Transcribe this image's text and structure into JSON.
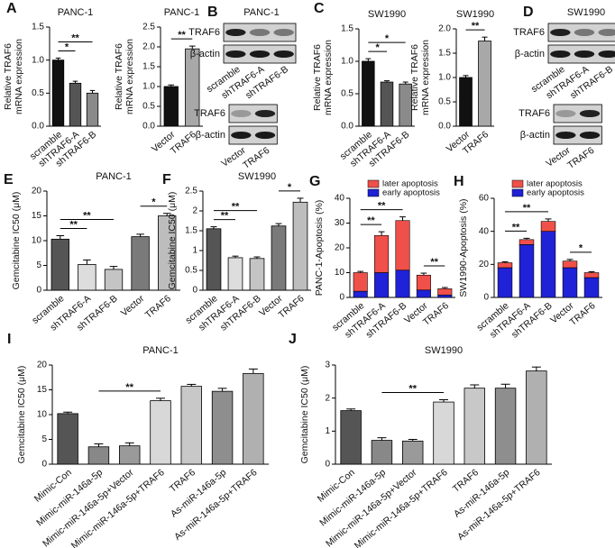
{
  "chart_data": [
    {
      "type": "bar",
      "letter": "A",
      "title": "PANC-1",
      "ylabel": [
        "Relative TRAF6",
        "mRNA expression"
      ],
      "categories": [
        "scramble",
        "shTRAF6-A",
        "shTRAF6-B"
      ],
      "values": [
        1.0,
        0.65,
        0.5
      ],
      "errors": [
        0.03,
        0.03,
        0.04
      ],
      "colors": [
        "#111111",
        "#555555",
        "#8a8a8a"
      ],
      "ylim": [
        0,
        1.5
      ],
      "yticks": [
        {
          "value": 0,
          "label": "0.0"
        },
        0.5,
        {
          "value": 1,
          "label": "1.0"
        },
        1.5
      ],
      "annotations": [
        {
          "text": "*",
          "between": [
            "scramble",
            "shTRAF6-A"
          ]
        },
        {
          "text": "**",
          "between": [
            "scramble",
            "shTRAF6-B"
          ]
        }
      ]
    },
    {
      "type": "bar",
      "title": "PANC-1",
      "ylabel": [
        "Relative TRAF6",
        "mRNA expression"
      ],
      "categories": [
        "Vector",
        "TRAF6"
      ],
      "values": [
        1.0,
        1.95
      ],
      "errors": [
        0.04,
        0.07
      ],
      "colors": [
        "#111111",
        "#a8a8a8"
      ],
      "ylim": [
        0,
        2.5
      ],
      "yticks": [
        {
          "value": 0,
          "label": "0.0"
        },
        0.5,
        {
          "value": 1,
          "label": "1.0"
        },
        1.5,
        {
          "value": 2,
          "label": "2.0"
        },
        2.5
      ],
      "annotations": [
        {
          "text": "**",
          "between": [
            "Vector",
            "TRAF6"
          ]
        }
      ]
    },
    {
      "type": "bar",
      "letter": "C",
      "title": "SW1990",
      "ylabel": [
        "Relative TRAF6",
        "mRNA expression"
      ],
      "categories": [
        "scramble",
        "shTRAF6-A",
        "shTRAF6-B"
      ],
      "values": [
        1.0,
        0.68,
        0.65
      ],
      "errors": [
        0.04,
        0.02,
        0.03
      ],
      "colors": [
        "#111111",
        "#555555",
        "#8a8a8a"
      ],
      "ylim": [
        0,
        1.5
      ],
      "yticks": [
        {
          "value": 0,
          "label": "0.0"
        },
        0.5,
        {
          "value": 1,
          "label": "1.0"
        },
        1.5
      ],
      "annotations": [
        {
          "text": "*",
          "between": [
            "scramble",
            "shTRAF6-A"
          ]
        },
        {
          "text": "*",
          "between": [
            "scramble",
            "shTRAF6-B"
          ]
        }
      ]
    },
    {
      "type": "bar",
      "title": "SW1990",
      "ylabel": [
        "Relative TRAF6",
        "mRNA expression"
      ],
      "categories": [
        "Vector",
        "TRAF6"
      ],
      "values": [
        1.0,
        1.75
      ],
      "errors": [
        0.04,
        0.08
      ],
      "colors": [
        "#111111",
        "#a8a8a8"
      ],
      "ylim": [
        0,
        2
      ],
      "yticks": [
        {
          "value": 0,
          "label": "0.0"
        },
        0.5,
        {
          "value": 1,
          "label": "1.0"
        },
        1.5,
        {
          "value": 2,
          "label": "2.0"
        }
      ],
      "annotations": [
        {
          "text": "**",
          "between": [
            "Vector",
            "TRAF6"
          ]
        }
      ]
    },
    {
      "type": "bar",
      "letter": "E",
      "title": "PANC-1",
      "ylabel": [
        "Gemcitabine IC50 (μM)"
      ],
      "categories": [
        "scramble",
        "shTRAF6-A",
        "shTRAF6-B",
        "Vector",
        "TRAF6"
      ],
      "values": [
        10.3,
        5.2,
        4.2,
        10.8,
        15.0
      ],
      "errors": [
        0.7,
        0.9,
        0.6,
        0.5,
        0.5
      ],
      "colors": [
        "#555555",
        "#dddddd",
        "#c4c4c4",
        "#7a7a7a",
        "#bdbdbd"
      ],
      "ylim": [
        0,
        20
      ],
      "yticks": [
        0,
        5,
        10,
        15,
        20
      ],
      "annotations": [
        {
          "text": "**",
          "between": [
            "scramble",
            "shTRAF6-A"
          ]
        },
        {
          "text": "**",
          "between": [
            "scramble",
            "shTRAF6-B"
          ]
        },
        {
          "text": "*",
          "between": [
            "Vector",
            "TRAF6"
          ]
        }
      ]
    },
    {
      "type": "bar",
      "letter": "F",
      "title": "SW1990",
      "ylabel": [
        "Gemcitabine IC50 (μM)"
      ],
      "categories": [
        "scramble",
        "shTRAF6-A",
        "shTRAF6-B",
        "Vector",
        "TRAF6"
      ],
      "values": [
        1.55,
        0.82,
        0.8,
        1.62,
        2.22
      ],
      "errors": [
        0.05,
        0.04,
        0.04,
        0.06,
        0.1
      ],
      "colors": [
        "#555555",
        "#dddddd",
        "#c4c4c4",
        "#7a7a7a",
        "#bdbdbd"
      ],
      "ylim": [
        0,
        2.5
      ],
      "yticks": [
        0,
        0.5,
        1,
        1.5,
        2,
        2.5
      ],
      "annotations": [
        {
          "text": "**",
          "between": [
            "scramble",
            "shTRAF6-A"
          ]
        },
        {
          "text": "**",
          "between": [
            "scramble",
            "shTRAF6-B"
          ]
        },
        {
          "text": "*",
          "between": [
            "Vector",
            "TRAF6"
          ]
        }
      ]
    },
    {
      "type": "stacked_bar",
      "letter": "G",
      "ylabel": [
        "PANC-1-Apoptosis (%)"
      ],
      "categories": [
        "scramble",
        "shTRAF6-A",
        "shTRAF6-B",
        "Vector",
        "TRAF6"
      ],
      "series": [
        {
          "name": "early apoptosis",
          "color": "#1f22d6",
          "values": [
            2.5,
            10,
            11,
            3,
            1
          ],
          "errors": [
            0.3,
            0.8,
            0.8,
            0.3,
            0.2
          ]
        },
        {
          "name": "later apoptosis",
          "color": "#f0504a",
          "values": [
            7.5,
            15,
            20,
            6,
            2.5
          ],
          "errors": [
            0.5,
            1.5,
            1.5,
            0.8,
            0.5
          ]
        }
      ],
      "legend": "top",
      "ylim": [
        0,
        40
      ],
      "yticks": [
        0,
        10,
        20,
        30,
        40
      ],
      "annotations": [
        {
          "text": "**",
          "between": [
            "scramble",
            "shTRAF6-A"
          ]
        },
        {
          "text": "**",
          "between": [
            "scramble",
            "shTRAF6-B"
          ]
        },
        {
          "text": "**",
          "between": [
            "Vector",
            "TRAF6"
          ]
        }
      ]
    },
    {
      "type": "stacked_bar",
      "letter": "H",
      "ylabel": [
        "SW1990-Apoptosis (%)"
      ],
      "categories": [
        "scramble",
        "shTRAF6-A",
        "shTRAF6-B",
        "Vector",
        "TRAF6"
      ],
      "series": [
        {
          "name": "early apoptosis",
          "color": "#1f22d6",
          "values": [
            18,
            32,
            40,
            18,
            12
          ],
          "errors": [
            0.8,
            1.5,
            2,
            1,
            0.8
          ]
        },
        {
          "name": "later apoptosis",
          "color": "#f0504a",
          "values": [
            3,
            3,
            6,
            4,
            3
          ],
          "errors": [
            0.6,
            0.8,
            1.5,
            1,
            0.6
          ]
        }
      ],
      "legend": "top",
      "ylim": [
        0,
        60
      ],
      "yticks": [
        0,
        20,
        40,
        60
      ],
      "annotations": [
        {
          "text": "**",
          "between": [
            "scramble",
            "shTRAF6-A"
          ]
        },
        {
          "text": "**",
          "between": [
            "scramble",
            "shTRAF6-B"
          ]
        },
        {
          "text": "*",
          "between": [
            "Vector",
            "TRAF6"
          ]
        }
      ]
    },
    {
      "type": "bar",
      "letter": "I",
      "title": "PANC-1",
      "ylabel": [
        "Gemcitabine IC50 (μM)"
      ],
      "categories": [
        "Mimic-Con",
        "Mimic-miR-146a-5p",
        "Mimic-miR-146a-5p+Vector",
        "Mimic-miR-146a-5p+TRAF6",
        "TRAF6",
        "As-miR-146a-5p",
        "As-miR-146a-5p+TRAF6"
      ],
      "values": [
        10.2,
        3.5,
        3.7,
        12.8,
        15.7,
        14.7,
        18.3
      ],
      "errors": [
        0.3,
        0.6,
        0.6,
        0.5,
        0.4,
        0.6,
        0.9
      ],
      "colors": [
        "#555555",
        "#888888",
        "#9a9a9a",
        "#d8d8d8",
        "#c8c8c8",
        "#8e8e8e",
        "#b0b0b0"
      ],
      "ylim": [
        0,
        20
      ],
      "yticks": [
        0,
        5,
        10,
        15,
        20
      ],
      "annotations": [
        {
          "text": "**",
          "between": [
            "Mimic-miR-146a-5p",
            "Mimic-miR-146a-5p+TRAF6"
          ]
        }
      ]
    },
    {
      "type": "bar",
      "letter": "J",
      "title": "SW1990",
      "ylabel": [
        "Gemcitabine IC50 (μM)"
      ],
      "categories": [
        "Mimic-Con",
        "Mimic-miR-146a-5p",
        "Mimic-miR-146a-5p+Vector",
        "Mimic-miR-146a-5p+TRAF6",
        "TRAF6",
        "As-miR-146a-5p",
        "As-miR-146a-5p+TRAF6"
      ],
      "values": [
        1.62,
        0.72,
        0.7,
        1.88,
        2.3,
        2.3,
        2.82
      ],
      "errors": [
        0.05,
        0.08,
        0.05,
        0.07,
        0.1,
        0.12,
        0.12
      ],
      "colors": [
        "#555555",
        "#888888",
        "#9a9a9a",
        "#d8d8d8",
        "#c8c8c8",
        "#8e8e8e",
        "#b0b0b0"
      ],
      "ylim": [
        0,
        3
      ],
      "yticks": [
        0,
        1,
        2,
        3
      ],
      "annotations": [
        {
          "text": "**",
          "between": [
            "Mimic-miR-146a-5p",
            "Mimic-miR-146a-5p+TRAF6"
          ]
        }
      ]
    }
  ],
  "blots": [
    {
      "letter": "B",
      "title": "PANC-1",
      "groups": [
        {
          "rows": [
            "TRAF6",
            "β-actin"
          ],
          "lanes": [
            "scramble",
            "shTRAF6-A",
            "shTRAF6-B"
          ]
        },
        {
          "rows": [
            "TRAF6",
            "β-actin"
          ],
          "lanes": [
            "Vector",
            "TRAF6"
          ]
        }
      ]
    },
    {
      "letter": "D",
      "title": "SW1990",
      "groups": [
        {
          "rows": [
            "TRAF6",
            "β-actin"
          ],
          "lanes": [
            "scramble",
            "shTRAF6-A",
            "shTRAF6-B"
          ]
        },
        {
          "rows": [
            "TRAF6",
            "β-actin"
          ],
          "lanes": [
            "Vector",
            "TRAF6"
          ]
        }
      ]
    }
  ]
}
